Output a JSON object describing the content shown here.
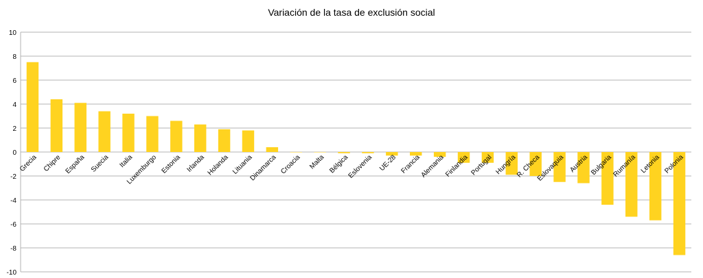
{
  "chart_data": {
    "type": "bar",
    "title": "Variación de la tasa de exclusión social",
    "xlabel": "",
    "ylabel": "",
    "ylim": [
      -10,
      10
    ],
    "yticks": [
      10,
      8,
      6,
      4,
      2,
      0,
      -2,
      -4,
      -6,
      -8,
      -10
    ],
    "grid": "horizontal",
    "legend": "none",
    "bar_color": "#FFD320",
    "categories": [
      "Grecia",
      "Chipre",
      "España",
      "Suecia",
      "Italia",
      "Luxemburgo",
      "Estonia",
      "Irlanda",
      "Holanda",
      "Lituania",
      "Dinamarca",
      "Croacia",
      "Malta",
      "Bélgica",
      "Eslovenia",
      "UE-28",
      "Francia",
      "Alemania",
      "Finlandia",
      "Portugal",
      "Hungría",
      "R. Checa",
      "Eslovaquia",
      "Austria",
      "Bulgaria",
      "Rumanía",
      "Letonia",
      "Polonia"
    ],
    "values": [
      7.5,
      4.4,
      4.1,
      3.4,
      3.2,
      3.0,
      2.6,
      2.3,
      1.9,
      1.8,
      0.4,
      0.0,
      0.0,
      -0.1,
      -0.1,
      -0.3,
      -0.3,
      -0.4,
      -0.9,
      -0.9,
      -1.9,
      -2.0,
      -2.5,
      -2.6,
      -4.4,
      -5.4,
      -5.7,
      -8.6
    ]
  }
}
